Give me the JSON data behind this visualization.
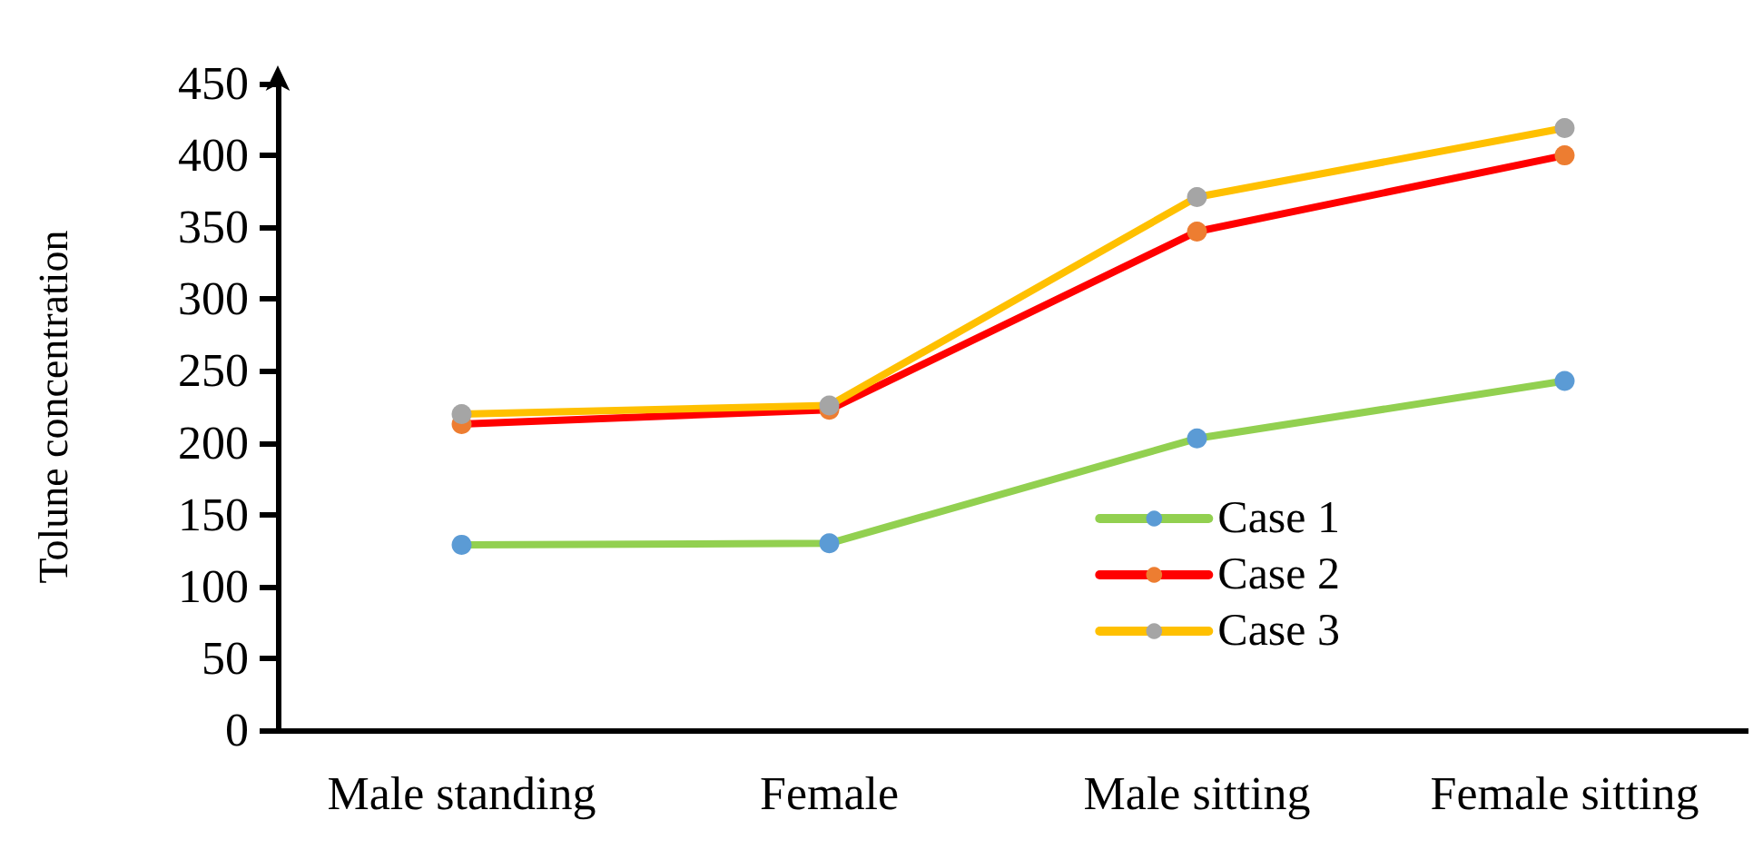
{
  "chart_data": {
    "type": "line",
    "ylabel": "Tolune concentration",
    "categories": [
      "Male standing",
      "Female",
      "Male sitting",
      "Female sitting"
    ],
    "series": [
      {
        "name": "Case 1",
        "color": "#92d050",
        "colors": [
          "#5b9bd5",
          "#5b9bd5",
          "#5b9bd5",
          "#5b9bd5"
        ],
        "values": [
          129,
          130,
          203,
          243
        ]
      },
      {
        "name": "Case 2",
        "color": "#ff0000",
        "colors": [
          "#ed7d31",
          "#ed7d31",
          "#ed7d31",
          "#ed7d31"
        ],
        "values": [
          213,
          223,
          347,
          400
        ]
      },
      {
        "name": "Case 3",
        "color": "#ffc000",
        "colors": [
          "#a5a5a5",
          "#a5a5a5",
          "#a5a5a5",
          "#a5a5a5"
        ],
        "values": [
          220,
          226,
          371,
          419
        ]
      }
    ],
    "ylim": [
      0,
      450
    ],
    "yticks": [
      0,
      50,
      100,
      150,
      200,
      250,
      300,
      350,
      400,
      450
    ],
    "grid": false,
    "legend": "bottom right",
    "marker": "circle",
    "line_style": "solid"
  }
}
